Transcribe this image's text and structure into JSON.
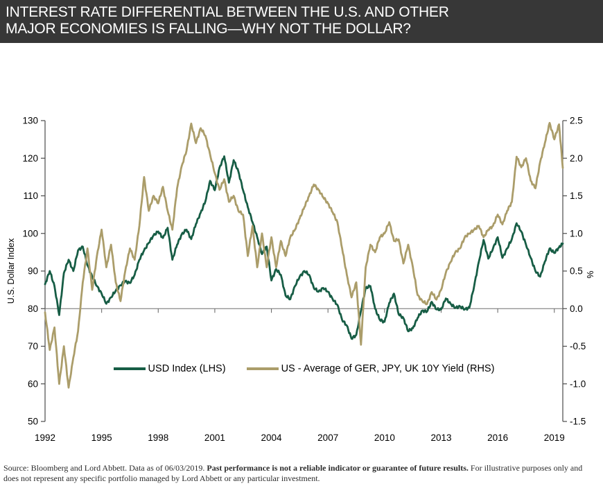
{
  "header": {
    "title_line1": "INTEREST RATE DIFFERENTIAL BETWEEN THE U.S. AND OTHER",
    "title_line2": "MAJOR ECONOMIES IS FALLING—WHY NOT THE DOLLAR?",
    "background_color": "#373737",
    "text_color": "#ffffff"
  },
  "footer": {
    "source_text": "Source: Bloomberg and Lord Abbett. Data as of 06/03/2019. ",
    "bold_text": "Past performance is not a reliable indicator or guarantee of future results.",
    "trailing_text": " For illustrative purposes only and does not represent any specific portfolio managed by Lord Abbett or any particular investment."
  },
  "chart_data": {
    "type": "line",
    "title": "",
    "left_axis": {
      "label": "U.S. Dollar Index",
      "min": 50,
      "max": 130,
      "ticks": [
        130,
        120,
        110,
        100,
        90,
        80,
        70,
        60,
        50
      ]
    },
    "right_axis": {
      "label": "%",
      "min": -1.5,
      "max": 2.5,
      "ticks": [
        2.5,
        2.0,
        1.5,
        1.0,
        0.5,
        0.0,
        -0.5,
        -1.0,
        -1.5
      ]
    },
    "x_axis": {
      "start": 1992,
      "end": 2019.45,
      "ticks": [
        1992,
        1995,
        1998,
        2001,
        2004,
        2007,
        2010,
        2013,
        2016,
        2019
      ]
    },
    "grid": "off",
    "zero_line_right_axis_value": 0.0,
    "legend_position": "inside-bottom-center",
    "series": [
      {
        "name": "USD Index (LHS)",
        "axis": "left",
        "color": "#175d45",
        "points": [
          [
            1992,
            86.5
          ],
          [
            1992.25,
            90
          ],
          [
            1992.5,
            86
          ],
          [
            1992.75,
            78.3
          ],
          [
            1993,
            89.5
          ],
          [
            1993.25,
            93
          ],
          [
            1993.5,
            90
          ],
          [
            1993.75,
            95.5
          ],
          [
            1994,
            96.5
          ],
          [
            1994.25,
            91.5
          ],
          [
            1994.5,
            88.5
          ],
          [
            1994.75,
            86
          ],
          [
            1995,
            84
          ],
          [
            1995.25,
            81.3
          ],
          [
            1995.5,
            83
          ],
          [
            1995.75,
            84.8
          ],
          [
            1996,
            86.2
          ],
          [
            1996.25,
            87.3
          ],
          [
            1996.5,
            86.8
          ],
          [
            1996.75,
            89
          ],
          [
            1997,
            93
          ],
          [
            1997.25,
            95.5
          ],
          [
            1997.5,
            97.5
          ],
          [
            1997.75,
            99.5
          ],
          [
            1998,
            100.5
          ],
          [
            1998.25,
            98.8
          ],
          [
            1998.5,
            101.5
          ],
          [
            1998.75,
            93
          ],
          [
            1999,
            97
          ],
          [
            1999.25,
            99.8
          ],
          [
            1999.5,
            101
          ],
          [
            1999.75,
            98.5
          ],
          [
            2000,
            102.5
          ],
          [
            2000.25,
            105.5
          ],
          [
            2000.5,
            108.5
          ],
          [
            2000.75,
            114
          ],
          [
            2001,
            111.5
          ],
          [
            2001.25,
            117.5
          ],
          [
            2001.5,
            120.5
          ],
          [
            2001.75,
            113.5
          ],
          [
            2002,
            119.5
          ],
          [
            2002.25,
            116.5
          ],
          [
            2002.5,
            111.5
          ],
          [
            2002.75,
            107
          ],
          [
            2003,
            103
          ],
          [
            2003.25,
            99
          ],
          [
            2003.5,
            94.5
          ],
          [
            2003.75,
            96.5
          ],
          [
            2004,
            87.5
          ],
          [
            2004.25,
            90.5
          ],
          [
            2004.5,
            89
          ],
          [
            2004.75,
            83.5
          ],
          [
            2005,
            82.5
          ],
          [
            2005.25,
            86
          ],
          [
            2005.5,
            88.5
          ],
          [
            2005.75,
            90
          ],
          [
            2006,
            89
          ],
          [
            2006.25,
            85.5
          ],
          [
            2006.5,
            84.5
          ],
          [
            2006.75,
            85.5
          ],
          [
            2007,
            84.5
          ],
          [
            2007.25,
            82.5
          ],
          [
            2007.5,
            81
          ],
          [
            2007.75,
            77
          ],
          [
            2008,
            75.5
          ],
          [
            2008.25,
            72
          ],
          [
            2008.5,
            73
          ],
          [
            2008.75,
            79.5
          ],
          [
            2009,
            85.5
          ],
          [
            2009.25,
            86
          ],
          [
            2009.5,
            80
          ],
          [
            2009.75,
            77
          ],
          [
            2010,
            76.5
          ],
          [
            2010.25,
            81.5
          ],
          [
            2010.5,
            84
          ],
          [
            2010.75,
            78.5
          ],
          [
            2011,
            77.5
          ],
          [
            2011.25,
            74
          ],
          [
            2011.5,
            74.8
          ],
          [
            2011.75,
            77.5
          ],
          [
            2012,
            79.5
          ],
          [
            2012.25,
            79.2
          ],
          [
            2012.5,
            81.8
          ],
          [
            2012.75,
            79.8
          ],
          [
            2013,
            79.8
          ],
          [
            2013.25,
            82.7
          ],
          [
            2013.5,
            81.3
          ],
          [
            2013.75,
            80.2
          ],
          [
            2014,
            80.6
          ],
          [
            2014.25,
            79.8
          ],
          [
            2014.5,
            80.3
          ],
          [
            2014.75,
            86
          ],
          [
            2015,
            92.5
          ],
          [
            2015.25,
            98.3
          ],
          [
            2015.5,
            93.3
          ],
          [
            2015.75,
            96
          ],
          [
            2016,
            99
          ],
          [
            2016.25,
            93.5
          ],
          [
            2016.5,
            96
          ],
          [
            2016.75,
            98.5
          ],
          [
            2017,
            102.7
          ],
          [
            2017.25,
            100.5
          ],
          [
            2017.5,
            97
          ],
          [
            2017.75,
            93.5
          ],
          [
            2018,
            90
          ],
          [
            2018.25,
            88.5
          ],
          [
            2018.5,
            92.5
          ],
          [
            2018.75,
            96
          ],
          [
            2019,
            94.8
          ],
          [
            2019.25,
            96.3
          ],
          [
            2019.45,
            97.3
          ]
        ]
      },
      {
        "name": "US - Average of GER, JPY, UK 10Y Yield (RHS)",
        "axis": "right",
        "color": "#ab9d6a",
        "points": [
          [
            1992,
            -0.05
          ],
          [
            1992.25,
            -0.55
          ],
          [
            1992.5,
            -0.25
          ],
          [
            1992.75,
            -1
          ],
          [
            1993,
            -0.5
          ],
          [
            1993.25,
            -1.05
          ],
          [
            1993.5,
            -0.65
          ],
          [
            1993.75,
            -0.3
          ],
          [
            1994,
            0.35
          ],
          [
            1994.25,
            0.8
          ],
          [
            1994.5,
            0.25
          ],
          [
            1994.75,
            0.7
          ],
          [
            1995,
            1.05
          ],
          [
            1995.25,
            0.55
          ],
          [
            1995.5,
            0.85
          ],
          [
            1995.75,
            0.35
          ],
          [
            1996,
            0.1
          ],
          [
            1996.25,
            0.5
          ],
          [
            1996.5,
            0.8
          ],
          [
            1996.75,
            0.65
          ],
          [
            1997,
            1.1
          ],
          [
            1997.25,
            1.75
          ],
          [
            1997.5,
            1.3
          ],
          [
            1997.75,
            1.5
          ],
          [
            1998,
            1.4
          ],
          [
            1998.25,
            1.62
          ],
          [
            1998.5,
            1.3
          ],
          [
            1998.75,
            1.05
          ],
          [
            1999,
            1.6
          ],
          [
            1999.25,
            1.9
          ],
          [
            1999.5,
            2.1
          ],
          [
            1999.75,
            2.46
          ],
          [
            2000,
            2.2
          ],
          [
            2000.25,
            2.4
          ],
          [
            2000.5,
            2.3
          ],
          [
            2000.75,
            2.05
          ],
          [
            2001,
            1.8
          ],
          [
            2001.25,
            1.58
          ],
          [
            2001.5,
            1.72
          ],
          [
            2001.75,
            1.42
          ],
          [
            2002,
            1.5
          ],
          [
            2002.25,
            1.3
          ],
          [
            2002.5,
            1.25
          ],
          [
            2002.75,
            0.7
          ],
          [
            2003,
            1.1
          ],
          [
            2003.25,
            0.55
          ],
          [
            2003.5,
            1
          ],
          [
            2003.75,
            0.55
          ],
          [
            2004,
            0.95
          ],
          [
            2004.25,
            0.55
          ],
          [
            2004.5,
            0.9
          ],
          [
            2004.75,
            0.7
          ],
          [
            2005,
            0.95
          ],
          [
            2005.25,
            1.05
          ],
          [
            2005.5,
            1.2
          ],
          [
            2005.75,
            1.35
          ],
          [
            2006,
            1.5
          ],
          [
            2006.25,
            1.65
          ],
          [
            2006.5,
            1.58
          ],
          [
            2006.75,
            1.48
          ],
          [
            2007,
            1.4
          ],
          [
            2007.25,
            1.28
          ],
          [
            2007.5,
            1.15
          ],
          [
            2007.75,
            0.8
          ],
          [
            2008,
            0.45
          ],
          [
            2008.25,
            0.15
          ],
          [
            2008.5,
            0.35
          ],
          [
            2008.75,
            -0.48
          ],
          [
            2009,
            0.55
          ],
          [
            2009.25,
            0.85
          ],
          [
            2009.5,
            0.75
          ],
          [
            2009.75,
            0.95
          ],
          [
            2010,
            1
          ],
          [
            2010.25,
            1.15
          ],
          [
            2010.5,
            0.9
          ],
          [
            2010.75,
            0.92
          ],
          [
            2011,
            0.6
          ],
          [
            2011.25,
            0.85
          ],
          [
            2011.5,
            0.55
          ],
          [
            2011.75,
            0.18
          ],
          [
            2012,
            0.1
          ],
          [
            2012.25,
            0.06
          ],
          [
            2012.5,
            0.22
          ],
          [
            2012.75,
            0.12
          ],
          [
            2013,
            0.25
          ],
          [
            2013.25,
            0.48
          ],
          [
            2013.5,
            0.62
          ],
          [
            2013.75,
            0.75
          ],
          [
            2014,
            0.8
          ],
          [
            2014.25,
            0.95
          ],
          [
            2014.5,
            1
          ],
          [
            2014.75,
            1.05
          ],
          [
            2015,
            1.1
          ],
          [
            2015.25,
            0.95
          ],
          [
            2015.5,
            1.05
          ],
          [
            2015.75,
            1.1
          ],
          [
            2016,
            1.25
          ],
          [
            2016.25,
            1.12
          ],
          [
            2016.5,
            1.3
          ],
          [
            2016.75,
            1.42
          ],
          [
            2017,
            2.02
          ],
          [
            2017.25,
            1.88
          ],
          [
            2017.5,
            2
          ],
          [
            2017.75,
            1.7
          ],
          [
            2018,
            1.6
          ],
          [
            2018.25,
            1.95
          ],
          [
            2018.5,
            2.2
          ],
          [
            2018.75,
            2.47
          ],
          [
            2019,
            2.25
          ],
          [
            2019.25,
            2.45
          ],
          [
            2019.45,
            1.87
          ]
        ]
      }
    ]
  }
}
